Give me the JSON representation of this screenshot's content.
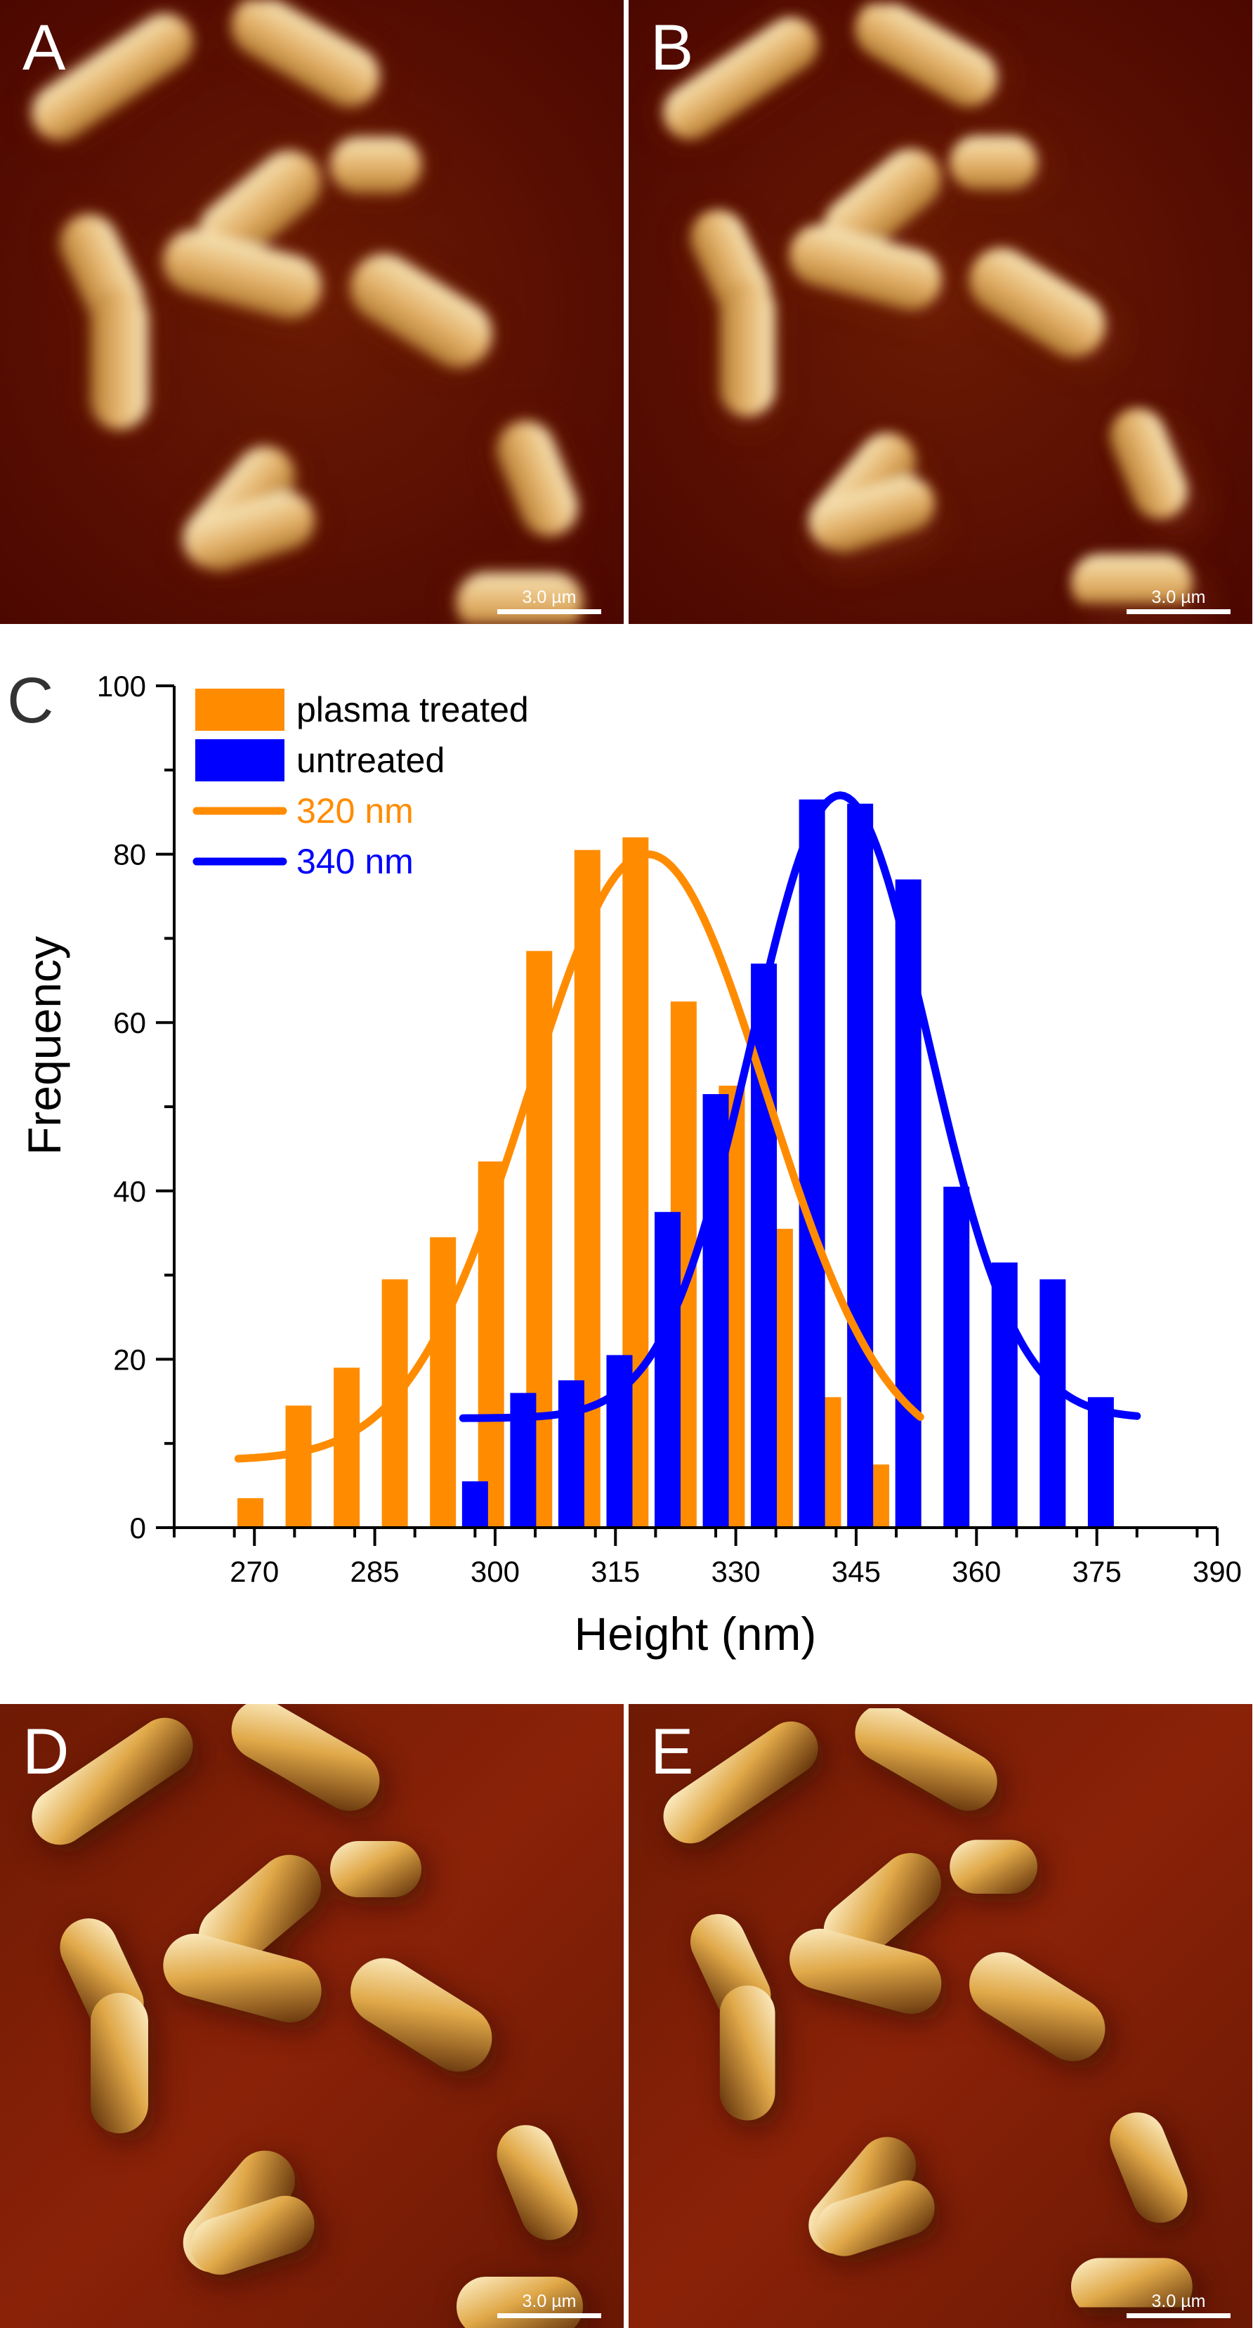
{
  "panels": {
    "A": {
      "label": "A",
      "scale_bar": "3.0 µm"
    },
    "B": {
      "label": "B",
      "scale_bar": "3.0 µm"
    },
    "D": {
      "label": "D",
      "scale_bar": "3.0 µm"
    },
    "E": {
      "label": "E",
      "scale_bar": "3.0 µm"
    }
  },
  "chart_data": {
    "type": "bar",
    "panel_label": "C",
    "xlabel": "Height (nm)",
    "ylabel": "Frequency",
    "xlim": [
      260,
      390
    ],
    "ylim": [
      0,
      100
    ],
    "xticks": [
      "270",
      "285",
      "300",
      "315",
      "330",
      "345",
      "360",
      "375",
      "390"
    ],
    "yticks": [
      "0",
      "20",
      "40",
      "60",
      "80",
      "100"
    ],
    "series": [
      {
        "name": "plasma treated",
        "color": "#ff8c00",
        "x": [
          269.5,
          275.5,
          281.5,
          287.5,
          293.5,
          299.5,
          305.5,
          311.5,
          317.5,
          323.5,
          329.5,
          335.5,
          341.5,
          347.5,
          353.5
        ],
        "values": [
          3.5,
          14.5,
          19,
          29.5,
          34.5,
          43.5,
          68.5,
          80.5,
          82,
          62.5,
          52.5,
          35.5,
          15.5,
          7.5,
          0
        ]
      },
      {
        "name": "untreated",
        "color": "#0000ff",
        "x": [
          297.5,
          303.5,
          309.5,
          315.5,
          321.5,
          327.5,
          333.5,
          339.5,
          345.5,
          351.5,
          357.5,
          363.5,
          369.5,
          375.5,
          381.5
        ],
        "values": [
          5.5,
          16,
          17.5,
          20.5,
          37.5,
          51.5,
          67,
          86.5,
          86,
          77,
          40.5,
          31.5,
          29.5,
          15.5,
          0
        ]
      }
    ],
    "fits": [
      {
        "name": "320 nm",
        "color": "#ff8c00",
        "center": 319,
        "amplitude": 72,
        "sigma": 14.8,
        "offset": 8,
        "x_range": [
          268,
          353
        ]
      },
      {
        "name": "340 nm",
        "color": "#0000ff",
        "center": 343,
        "amplitude": 74,
        "sigma": 11,
        "offset": 13,
        "x_range": [
          296,
          380
        ]
      }
    ],
    "legend": [
      {
        "label": "plasma treated",
        "kind": "bar",
        "color": "#ff8c00"
      },
      {
        "label": "untreated",
        "kind": "bar",
        "color": "#0000ff"
      },
      {
        "label": "320 nm",
        "kind": "line",
        "color": "#ff8c00"
      },
      {
        "label": "340 nm",
        "kind": "line",
        "color": "#0000ff"
      }
    ],
    "legend_position": "top-left"
  }
}
